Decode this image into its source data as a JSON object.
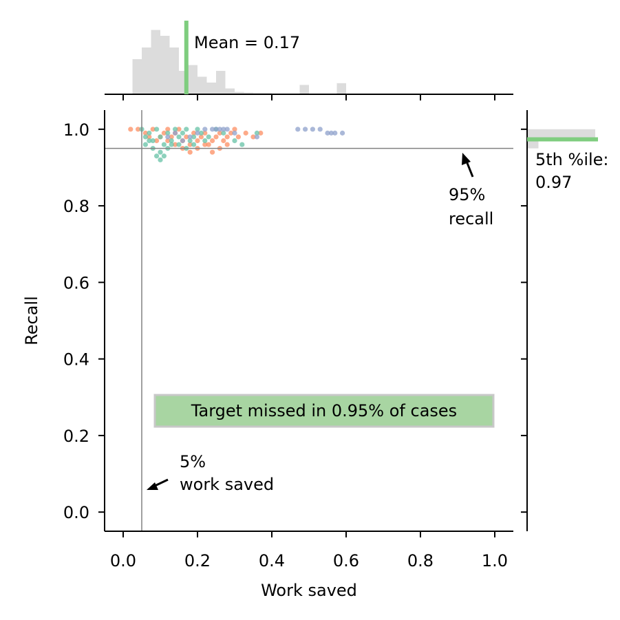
{
  "chart_data": {
    "type": "scatter",
    "title": "",
    "xlabel": "Work saved",
    "ylabel": "Recall",
    "xlim": [
      -0.05,
      1.05
    ],
    "ylim": [
      -0.05,
      1.05
    ],
    "xticks": [
      "0.0",
      "0.2",
      "0.4",
      "0.6",
      "0.8",
      "1.0"
    ],
    "yticks": [
      "0.0",
      "0.2",
      "0.4",
      "0.6",
      "0.8",
      "1.0"
    ],
    "grid": false,
    "legend": "none",
    "reference_lines": {
      "recall": 0.95,
      "work_saved": 0.05
    },
    "series": [
      {
        "color": "#fc8d62",
        "points": [
          [
            0.02,
            1.0
          ],
          [
            0.04,
            1.0
          ],
          [
            0.06,
            0.99
          ],
          [
            0.07,
            0.98
          ],
          [
            0.08,
            1.0
          ],
          [
            0.09,
            0.97
          ],
          [
            0.1,
            0.98
          ],
          [
            0.11,
            0.99
          ],
          [
            0.12,
            0.97
          ],
          [
            0.13,
            0.98
          ],
          [
            0.14,
            0.96
          ],
          [
            0.15,
            1.0
          ],
          [
            0.16,
            0.97
          ],
          [
            0.17,
            0.98
          ],
          [
            0.18,
            0.96
          ],
          [
            0.19,
            0.99
          ],
          [
            0.2,
            0.97
          ],
          [
            0.21,
            0.98
          ],
          [
            0.22,
            0.99
          ],
          [
            0.23,
            0.96
          ],
          [
            0.24,
            0.97
          ],
          [
            0.25,
            0.98
          ],
          [
            0.26,
            0.99
          ],
          [
            0.27,
            0.97
          ],
          [
            0.28,
            0.98
          ],
          [
            0.29,
            0.99
          ],
          [
            0.3,
            1.0
          ],
          [
            0.31,
            0.98
          ],
          [
            0.33,
            0.99
          ],
          [
            0.35,
            0.98
          ],
          [
            0.37,
            0.99
          ],
          [
            0.16,
            0.95
          ],
          [
            0.18,
            0.94
          ],
          [
            0.2,
            0.95
          ],
          [
            0.22,
            0.96
          ],
          [
            0.24,
            0.94
          ],
          [
            0.26,
            0.95
          ],
          [
            0.28,
            0.96
          ],
          [
            0.14,
            0.99
          ],
          [
            0.12,
            1.0
          ]
        ]
      },
      {
        "color": "#66c2a5",
        "points": [
          [
            0.05,
            1.0
          ],
          [
            0.06,
            0.98
          ],
          [
            0.07,
            0.99
          ],
          [
            0.08,
            0.97
          ],
          [
            0.09,
            1.0
          ],
          [
            0.1,
            0.98
          ],
          [
            0.11,
            0.96
          ],
          [
            0.12,
            0.99
          ],
          [
            0.13,
            0.97
          ],
          [
            0.14,
            1.0
          ],
          [
            0.15,
            0.98
          ],
          [
            0.16,
            0.99
          ],
          [
            0.17,
            1.0
          ],
          [
            0.18,
            0.97
          ],
          [
            0.19,
            0.98
          ],
          [
            0.2,
            1.0
          ],
          [
            0.21,
            0.99
          ],
          [
            0.22,
            0.97
          ],
          [
            0.23,
            0.98
          ],
          [
            0.08,
            0.95
          ],
          [
            0.1,
            0.94
          ],
          [
            0.12,
            0.95
          ],
          [
            0.1,
            0.92
          ],
          [
            0.09,
            0.93
          ],
          [
            0.11,
            0.93
          ],
          [
            0.13,
            0.96
          ],
          [
            0.15,
            0.96
          ],
          [
            0.17,
            0.95
          ],
          [
            0.19,
            0.96
          ],
          [
            0.3,
            0.97
          ],
          [
            0.32,
            0.96
          ],
          [
            0.36,
            0.99
          ],
          [
            0.06,
            0.96
          ],
          [
            0.07,
            0.97
          ],
          [
            0.25,
            1.0
          ],
          [
            0.27,
            0.99
          ]
        ]
      },
      {
        "color": "#8da0cb",
        "points": [
          [
            0.12,
            0.98
          ],
          [
            0.14,
            0.99
          ],
          [
            0.16,
            0.97
          ],
          [
            0.18,
            0.98
          ],
          [
            0.2,
            0.99
          ],
          [
            0.22,
            1.0
          ],
          [
            0.24,
            1.0
          ],
          [
            0.25,
            1.0
          ],
          [
            0.26,
            1.0
          ],
          [
            0.27,
            1.0
          ],
          [
            0.28,
            1.0
          ],
          [
            0.3,
            0.99
          ],
          [
            0.36,
            0.98
          ],
          [
            0.47,
            1.0
          ],
          [
            0.49,
            1.0
          ],
          [
            0.51,
            1.0
          ],
          [
            0.53,
            1.0
          ],
          [
            0.55,
            0.99
          ],
          [
            0.56,
            0.99
          ],
          [
            0.57,
            0.99
          ],
          [
            0.59,
            0.99
          ]
        ]
      }
    ],
    "top_histogram": {
      "axis": "Work saved",
      "bin_width": 0.025,
      "bin_start": 0.025,
      "counts": [
        6,
        8,
        11,
        10,
        8,
        4,
        5,
        3,
        2,
        4,
        1,
        0.4,
        0.3,
        0.2,
        0.2,
        0,
        0,
        0,
        1.6,
        0,
        0,
        0,
        1.9
      ],
      "mean_value": 0.17,
      "annotation": "Mean = 0.17"
    },
    "right_histogram": {
      "axis": "Recall",
      "bins": [
        {
          "from": 0.975,
          "to": 1.0,
          "count": 6
        },
        {
          "from": 0.95,
          "to": 0.975,
          "count": 1
        }
      ],
      "percentile_value": 0.97,
      "annotation_line1": "5th %ile:",
      "annotation_line2": "0.97"
    },
    "annotations": [
      {
        "text_line1": "95%",
        "text_line2": "recall",
        "at": [
          0.95,
          0.95
        ]
      },
      {
        "text_line1": "5%",
        "text_line2": "work saved",
        "at": [
          0.05,
          0.06
        ]
      },
      {
        "text": "Target missed in 0.95% of cases",
        "box_color": "#a8d5a2"
      }
    ],
    "colors": {
      "accent": "#7fcd7f",
      "histogram": "#dcdcdc",
      "reference_line": "#808080"
    }
  }
}
